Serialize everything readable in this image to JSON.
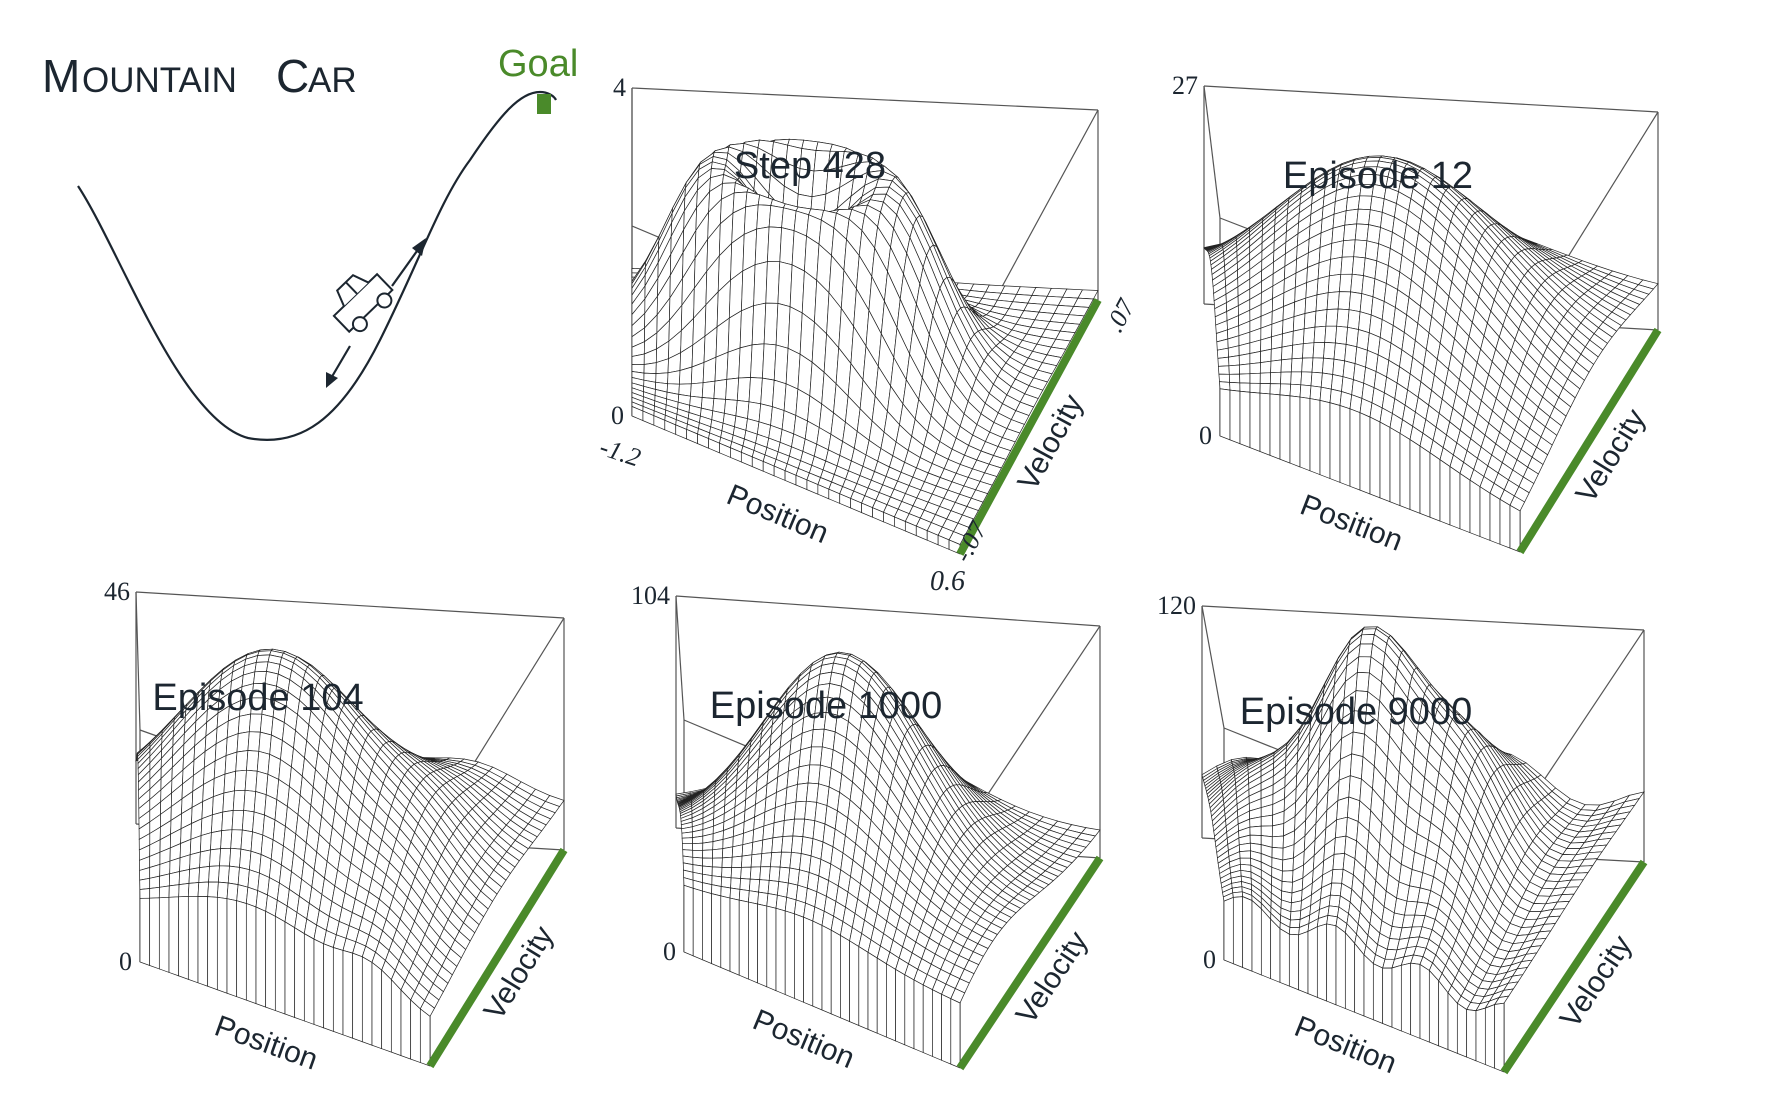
{
  "figure": {
    "title_big_m": "M",
    "title_small_ountain": "OUNTAIN",
    "title_big_c": "C",
    "title_small_ar": "AR",
    "goal_label": "Goal",
    "colors": {
      "ink": "#1c2630",
      "goal_green": "#4a8a2a",
      "mesh": "#222222",
      "box": "#555555"
    }
  },
  "panels": [
    {
      "title": "Step 428",
      "peak_value": "4",
      "zero_label": "0",
      "position_label": "Position",
      "velocity_label": "Velocity",
      "pos_min_label": "-1.2",
      "pos_max_label": "0.6",
      "vel_min_label": "-.07",
      "vel_max_label": ".07"
    },
    {
      "title": "Episode 12",
      "peak_value": "27",
      "zero_label": "0",
      "position_label": "Position",
      "velocity_label": "Velocity"
    },
    {
      "title": "Episode 104",
      "peak_value": "46",
      "zero_label": "0",
      "position_label": "Position",
      "velocity_label": "Velocity"
    },
    {
      "title": "Episode 1000",
      "peak_value": "104",
      "zero_label": "0",
      "position_label": "Position",
      "velocity_label": "Velocity"
    },
    {
      "title": "Episode 9000",
      "peak_value": "120",
      "zero_label": "0",
      "position_label": "Position",
      "velocity_label": "Velocity"
    }
  ]
}
